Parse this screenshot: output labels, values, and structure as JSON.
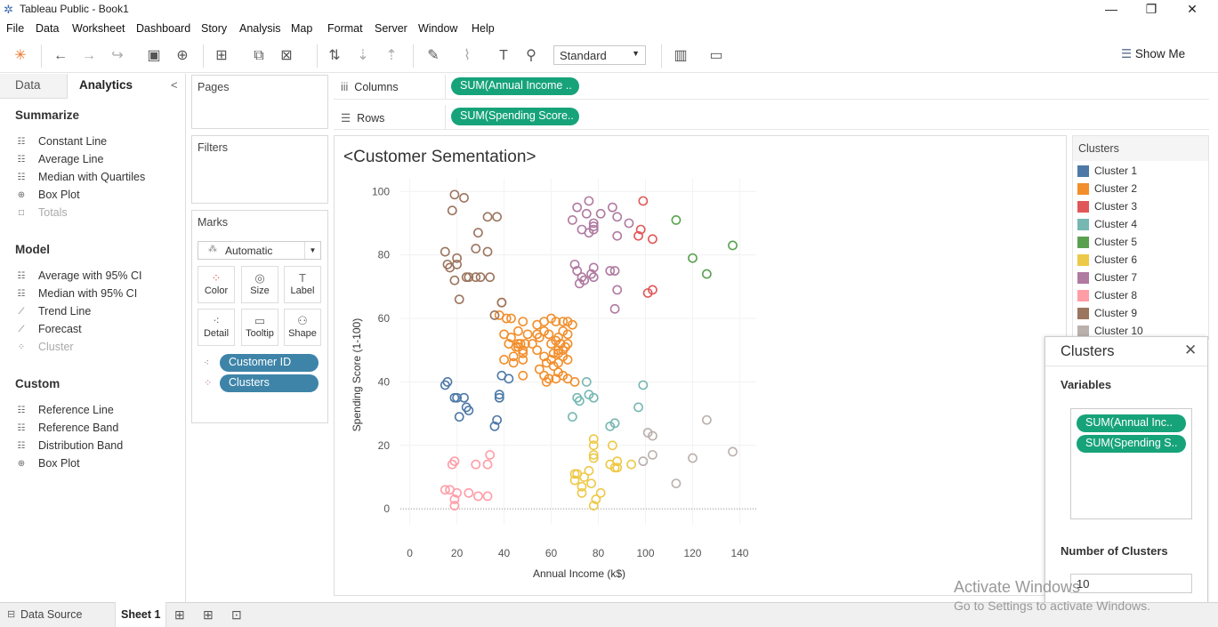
{
  "window": {
    "title": "Tableau Public - Book1",
    "minimize": "—",
    "restore": "❐",
    "close": "✕"
  },
  "menu": [
    "File",
    "Data",
    "Worksheet",
    "Dashboard",
    "Story",
    "Analysis",
    "Map",
    "Format",
    "Server",
    "Window",
    "Help"
  ],
  "toolbar": {
    "fit_mode": "Standard",
    "show_me": "Show Me"
  },
  "left_pane": {
    "tabs": [
      "Data",
      "Analytics"
    ],
    "collapse": "<",
    "sections": [
      {
        "title": "Summarize",
        "items": [
          {
            "label": "Constant Line",
            "enabled": true
          },
          {
            "label": "Average Line",
            "enabled": true
          },
          {
            "label": "Median with Quartiles",
            "enabled": true
          },
          {
            "label": "Box Plot",
            "enabled": true
          },
          {
            "label": "Totals",
            "enabled": false
          }
        ]
      },
      {
        "title": "Model",
        "items": [
          {
            "label": "Average with 95% CI",
            "enabled": true
          },
          {
            "label": "Median with 95% CI",
            "enabled": true
          },
          {
            "label": "Trend Line",
            "enabled": true
          },
          {
            "label": "Forecast",
            "enabled": true
          },
          {
            "label": "Cluster",
            "enabled": false
          }
        ]
      },
      {
        "title": "Custom",
        "items": [
          {
            "label": "Reference Line",
            "enabled": true
          },
          {
            "label": "Reference Band",
            "enabled": true
          },
          {
            "label": "Distribution Band",
            "enabled": true
          },
          {
            "label": "Box Plot",
            "enabled": true
          }
        ]
      }
    ]
  },
  "cards": {
    "pages": "Pages",
    "filters": "Filters",
    "marks": "Marks"
  },
  "marks": {
    "type": "Automatic",
    "buttons": [
      "Color",
      "Size",
      "Label",
      "Detail",
      "Tooltip",
      "Shape"
    ],
    "fields": [
      "Customer ID",
      "Clusters"
    ]
  },
  "shelves": {
    "columns_label": "Columns",
    "columns_pill": "SUM(Annual Income ..",
    "rows_label": "Rows",
    "rows_pill": "SUM(Spending Score.."
  },
  "legend": {
    "title": "Clusters",
    "items": [
      {
        "name": "Cluster 1",
        "color": "#4e79a7"
      },
      {
        "name": "Cluster 2",
        "color": "#f28e2b"
      },
      {
        "name": "Cluster 3",
        "color": "#e15759"
      },
      {
        "name": "Cluster 4",
        "color": "#76b7b2"
      },
      {
        "name": "Cluster 5",
        "color": "#59a14f"
      },
      {
        "name": "Cluster 6",
        "color": "#edc948"
      },
      {
        "name": "Cluster 7",
        "color": "#b07aa1"
      },
      {
        "name": "Cluster 8",
        "color": "#ff9da7"
      },
      {
        "name": "Cluster 9",
        "color": "#9c755f"
      },
      {
        "name": "Cluster 10",
        "color": "#bab0ac"
      }
    ]
  },
  "cluster_dialog": {
    "title": "Clusters",
    "variables_label": "Variables",
    "variables": [
      "SUM(Annual Inc..",
      "SUM(Spending S.."
    ],
    "num_label": "Number of Clusters",
    "num_value": "10"
  },
  "status": {
    "data_source": "Data Source",
    "sheet": "Sheet 1"
  },
  "watermark": {
    "line1": "Activate Windows",
    "line2": "Go to Settings to activate Windows."
  },
  "chart_data": {
    "type": "scatter",
    "title": "<Customer Sementation>",
    "xlabel": "Annual Income (k$)",
    "ylabel": "Spending Score (1-100)",
    "xlim": [
      -4,
      147
    ],
    "ylim": [
      -5,
      104
    ],
    "xticks": [
      0,
      20,
      40,
      60,
      80,
      100,
      120,
      140
    ],
    "yticks": [
      0,
      20,
      40,
      60,
      80,
      100
    ],
    "grid": true,
    "series": [
      {
        "name": "Cluster 1",
        "color": "#4e79a7",
        "points": [
          [
            15,
            39
          ],
          [
            16,
            40
          ],
          [
            19,
            35
          ],
          [
            20,
            35
          ],
          [
            21,
            29
          ],
          [
            23,
            35
          ],
          [
            24,
            32
          ],
          [
            25,
            31
          ],
          [
            36,
            26
          ],
          [
            37,
            28
          ],
          [
            38,
            35
          ],
          [
            38,
            36
          ],
          [
            39,
            42
          ],
          [
            42,
            41
          ]
        ]
      },
      {
        "name": "Cluster 2",
        "color": "#f28e2b",
        "points": [
          [
            38,
            61
          ],
          [
            39,
            65
          ],
          [
            40,
            55
          ],
          [
            40,
            47
          ],
          [
            41,
            60
          ],
          [
            42,
            52
          ],
          [
            43,
            60
          ],
          [
            43,
            54
          ],
          [
            44,
            48
          ],
          [
            44,
            46
          ],
          [
            45,
            51
          ],
          [
            46,
            51
          ],
          [
            46,
            52
          ],
          [
            46,
            56
          ],
          [
            47,
            52
          ],
          [
            48,
            59
          ],
          [
            48,
            50
          ],
          [
            48,
            49
          ],
          [
            48,
            47
          ],
          [
            48,
            42
          ],
          [
            49,
            52
          ],
          [
            50,
            55
          ],
          [
            52,
            52
          ],
          [
            54,
            58
          ],
          [
            54,
            50
          ],
          [
            54,
            55
          ],
          [
            55,
            54
          ],
          [
            57,
            48
          ],
          [
            57,
            56
          ],
          [
            58,
            46
          ],
          [
            59,
            55
          ],
          [
            60,
            52
          ],
          [
            60,
            47
          ],
          [
            60,
            60
          ],
          [
            61,
            49
          ],
          [
            62,
            59
          ],
          [
            62,
            53
          ],
          [
            62,
            41
          ],
          [
            63,
            49
          ],
          [
            63,
            46
          ],
          [
            63,
            50
          ],
          [
            63,
            54
          ],
          [
            63,
            43
          ],
          [
            64,
            52
          ],
          [
            65,
            48
          ],
          [
            65,
            59
          ],
          [
            65,
            56
          ],
          [
            65,
            42
          ],
          [
            67,
            59
          ],
          [
            67,
            47
          ],
          [
            67,
            41
          ],
          [
            67,
            52
          ],
          [
            69,
            58
          ],
          [
            70,
            40
          ],
          [
            57,
            59
          ],
          [
            55,
            44
          ],
          [
            57,
            42
          ],
          [
            58,
            40
          ],
          [
            59,
            41
          ],
          [
            61,
            45
          ],
          [
            65,
            50
          ],
          [
            66,
            51
          ],
          [
            67,
            55
          ]
        ]
      },
      {
        "name": "Cluster 3",
        "color": "#e15759",
        "points": [
          [
            97,
            86
          ],
          [
            98,
            88
          ],
          [
            99,
            97
          ],
          [
            101,
            68
          ],
          [
            103,
            69
          ],
          [
            103,
            85
          ]
        ]
      },
      {
        "name": "Cluster 4",
        "color": "#76b7b2",
        "points": [
          [
            69,
            29
          ],
          [
            71,
            35
          ],
          [
            72,
            34
          ],
          [
            75,
            40
          ],
          [
            76,
            36
          ],
          [
            78,
            35
          ],
          [
            85,
            26
          ],
          [
            87,
            27
          ],
          [
            97,
            32
          ],
          [
            99,
            39
          ]
        ]
      },
      {
        "name": "Cluster 5",
        "color": "#59a14f",
        "points": [
          [
            113,
            91
          ],
          [
            120,
            79
          ],
          [
            126,
            74
          ],
          [
            137,
            83
          ]
        ]
      },
      {
        "name": "Cluster 6",
        "color": "#edc948",
        "points": [
          [
            70,
            9
          ],
          [
            70,
            11
          ],
          [
            71,
            11
          ],
          [
            73,
            5
          ],
          [
            73,
            7
          ],
          [
            74,
            10
          ],
          [
            76,
            12
          ],
          [
            77,
            8
          ],
          [
            78,
            1
          ],
          [
            78,
            16
          ],
          [
            78,
            17
          ],
          [
            78,
            20
          ],
          [
            78,
            22
          ],
          [
            79,
            3
          ],
          [
            81,
            5
          ],
          [
            85,
            14
          ],
          [
            86,
            20
          ],
          [
            87,
            13
          ],
          [
            88,
            13
          ],
          [
            88,
            15
          ],
          [
            94,
            14
          ]
        ]
      },
      {
        "name": "Cluster 7",
        "color": "#b07aa1",
        "points": [
          [
            69,
            91
          ],
          [
            70,
            77
          ],
          [
            71,
            95
          ],
          [
            71,
            75
          ],
          [
            72,
            71
          ],
          [
            73,
            88
          ],
          [
            73,
            73
          ],
          [
            74,
            72
          ],
          [
            75,
            93
          ],
          [
            76,
            87
          ],
          [
            76,
            97
          ],
          [
            77,
            74
          ],
          [
            78,
            90
          ],
          [
            78,
            88
          ],
          [
            78,
            76
          ],
          [
            78,
            73
          ],
          [
            78,
            89
          ],
          [
            81,
            93
          ],
          [
            85,
            75
          ],
          [
            86,
            95
          ],
          [
            87,
            63
          ],
          [
            87,
            75
          ],
          [
            88,
            92
          ],
          [
            88,
            69
          ],
          [
            88,
            86
          ],
          [
            93,
            90
          ]
        ]
      },
      {
        "name": "Cluster 8",
        "color": "#ff9da7",
        "points": [
          [
            15,
            6
          ],
          [
            17,
            6
          ],
          [
            18,
            14
          ],
          [
            19,
            3
          ],
          [
            19,
            15
          ],
          [
            19,
            1
          ],
          [
            20,
            5
          ],
          [
            25,
            5
          ],
          [
            28,
            14
          ],
          [
            29,
            4
          ],
          [
            33,
            4
          ],
          [
            33,
            14
          ],
          [
            34,
            17
          ]
        ]
      },
      {
        "name": "Cluster 9",
        "color": "#9c755f",
        "points": [
          [
            15,
            81
          ],
          [
            16,
            77
          ],
          [
            17,
            76
          ],
          [
            18,
            94
          ],
          [
            19,
            72
          ],
          [
            19,
            99
          ],
          [
            20,
            77
          ],
          [
            20,
            79
          ],
          [
            21,
            66
          ],
          [
            23,
            98
          ],
          [
            24,
            73
          ],
          [
            25,
            73
          ],
          [
            28,
            82
          ],
          [
            28,
            73
          ],
          [
            29,
            87
          ],
          [
            30,
            73
          ],
          [
            33,
            92
          ],
          [
            33,
            81
          ],
          [
            34,
            73
          ],
          [
            36,
            61
          ],
          [
            37,
            92
          ],
          [
            39,
            65
          ]
        ]
      },
      {
        "name": "Cluster 10",
        "color": "#bab0ac",
        "points": [
          [
            99,
            15
          ],
          [
            101,
            24
          ],
          [
            103,
            17
          ],
          [
            103,
            23
          ],
          [
            113,
            8
          ],
          [
            120,
            16
          ],
          [
            126,
            28
          ],
          [
            137,
            18
          ]
        ]
      }
    ]
  }
}
